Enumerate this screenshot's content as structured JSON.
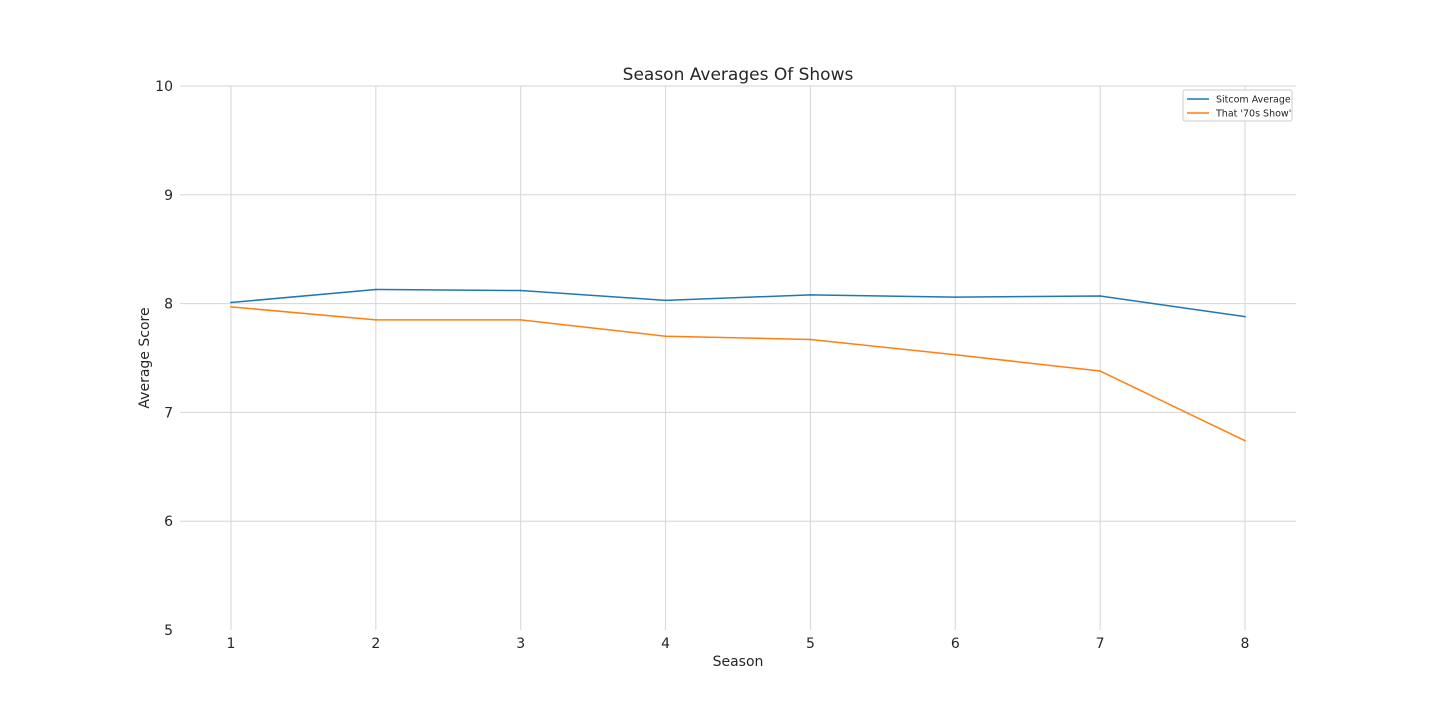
{
  "chart_data": {
    "type": "line",
    "title": "Season Averages Of Shows",
    "xlabel": "Season",
    "ylabel": "Average Score",
    "x": [
      1,
      2,
      3,
      4,
      5,
      6,
      7,
      8
    ],
    "x_ticks": [
      "1",
      "2",
      "3",
      "4",
      "5",
      "6",
      "7",
      "8"
    ],
    "y_ticks": [
      "5",
      "6",
      "7",
      "8",
      "9",
      "10"
    ],
    "ylim": [
      5,
      10
    ],
    "grid": true,
    "legend_position": "top-right",
    "series": [
      {
        "name": "Sitcom Average",
        "color": "#1f77b4",
        "values": [
          8.01,
          8.13,
          8.12,
          8.03,
          8.08,
          8.06,
          8.07,
          7.88
        ]
      },
      {
        "name": "That '70s Show'",
        "color": "#ff7f0e",
        "values": [
          7.97,
          7.85,
          7.85,
          7.7,
          7.67,
          7.53,
          7.38,
          6.74
        ]
      }
    ]
  }
}
